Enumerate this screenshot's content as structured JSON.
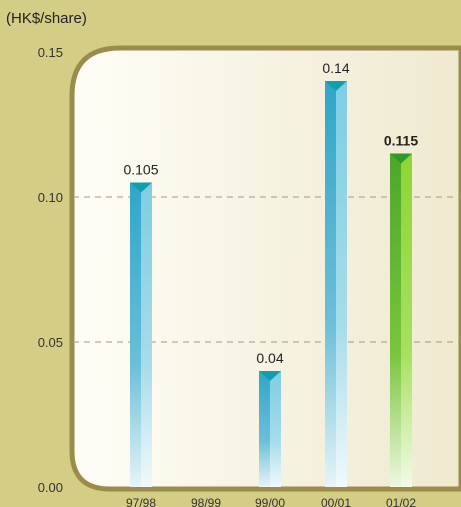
{
  "chart_data": {
    "type": "bar",
    "unit_label": "(HK$/share)",
    "categories": [
      "97/98",
      "98/99",
      "99/00",
      "00/01",
      "01/02"
    ],
    "values": [
      0.105,
      null,
      0.04,
      0.14,
      0.115
    ],
    "value_labels": [
      "0.105",
      "",
      "0.04",
      "0.14",
      "0.115"
    ],
    "highlight_index": 4,
    "ylim": [
      0,
      0.15
    ],
    "yticks": [
      0.0,
      0.05,
      0.1,
      0.15
    ],
    "ytick_labels": [
      "0.00",
      "0.05",
      "0.10",
      "0.15"
    ],
    "grid": "dashed at 0.05 and 0.10",
    "colors": {
      "background": "#d3cd85",
      "panel": "#f8f4e3",
      "panel_border": "#9a8c4a",
      "bar": "#4fb3cf",
      "bar_dark": "#119fb0",
      "highlight_bar": "#7ccb2a",
      "highlight_dark": "#2e9a2a",
      "grid": "#a09a80"
    }
  }
}
